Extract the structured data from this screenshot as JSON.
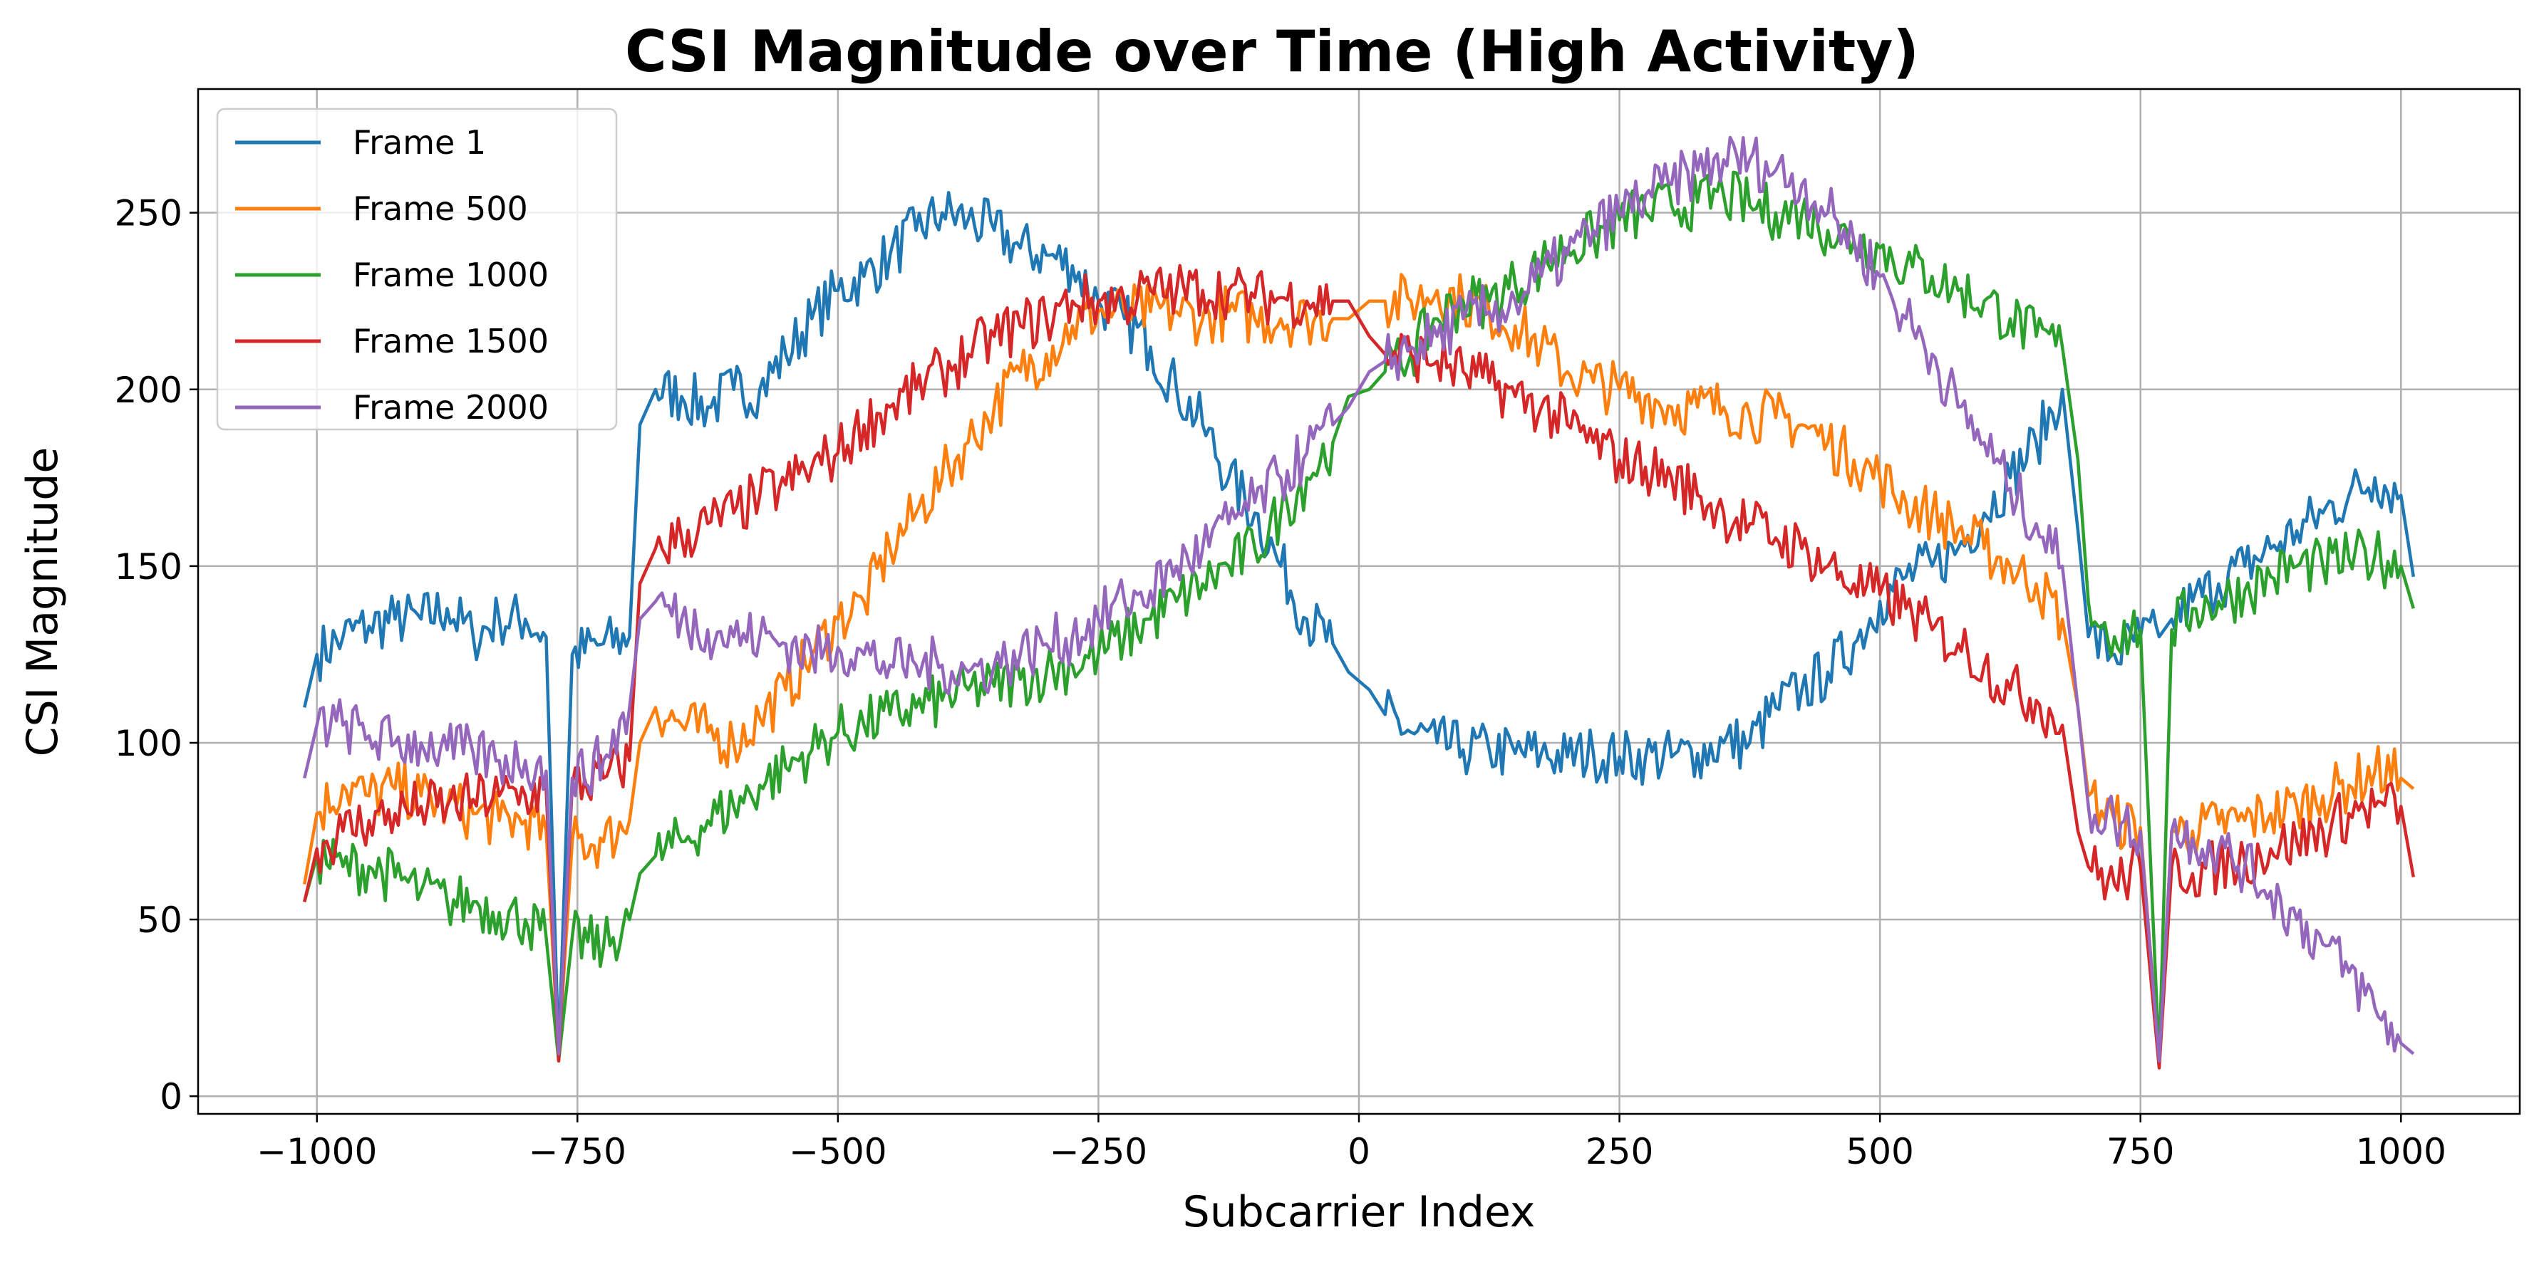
{
  "chart_data": {
    "type": "line",
    "title": "CSI Magnitude over Time (High Activity)",
    "xlabel": "Subcarrier Index",
    "ylabel": "CSI Magnitude",
    "xlim": [
      -1114,
      1114
    ],
    "ylim": [
      -5,
      285
    ],
    "xticks": [
      -1000,
      -750,
      -500,
      -250,
      0,
      250,
      500,
      750,
      1000
    ],
    "xtick_labels": [
      "−1000",
      "−750",
      "−500",
      "−250",
      "0",
      "250",
      "500",
      "750",
      "1000"
    ],
    "yticks": [
      0,
      50,
      100,
      150,
      200,
      250
    ],
    "ytick_labels": [
      "0",
      "50",
      "100",
      "150",
      "200",
      "250"
    ],
    "grid": true,
    "legend_position": "top-left",
    "x": [
      -1012,
      -1000,
      -975,
      -950,
      -925,
      -900,
      -875,
      -850,
      -825,
      -800,
      -780,
      -768,
      -755,
      -725,
      -700,
      -690,
      -675,
      -650,
      -625,
      -600,
      -575,
      -550,
      -525,
      -500,
      -475,
      -450,
      -425,
      -400,
      -375,
      -350,
      -325,
      -300,
      -275,
      -250,
      -225,
      -200,
      -175,
      -150,
      -125,
      -100,
      -75,
      -50,
      -25,
      -10,
      10,
      25,
      50,
      75,
      100,
      125,
      150,
      175,
      200,
      225,
      250,
      275,
      300,
      325,
      350,
      375,
      400,
      425,
      450,
      475,
      500,
      525,
      550,
      575,
      600,
      625,
      650,
      675,
      690,
      700,
      725,
      750,
      768,
      780,
      800,
      825,
      850,
      875,
      900,
      925,
      950,
      975,
      1000,
      1012
    ],
    "series": [
      {
        "name": "Frame 1",
        "color": "#1f77b4",
        "values": [
          110,
          125,
          130,
          133,
          135,
          135,
          138,
          130,
          135,
          135,
          130,
          12,
          125,
          128,
          130,
          190,
          200,
          198,
          195,
          200,
          200,
          210,
          220,
          228,
          232,
          238,
          245,
          250,
          248,
          245,
          240,
          238,
          235,
          225,
          220,
          212,
          200,
          190,
          175,
          165,
          150,
          135,
          128,
          120,
          115,
          108,
          103,
          100,
          98,
          98,
          97,
          97,
          96,
          97,
          96,
          96,
          96,
          97,
          100,
          100,
          110,
          115,
          120,
          128,
          140,
          147,
          150,
          155,
          165,
          175,
          185,
          200,
          160,
          130,
          125,
          130,
          130,
          135,
          140,
          145,
          150,
          155,
          160,
          165,
          170,
          175,
          170,
          147
        ]
      },
      {
        "name": "Frame 500",
        "color": "#ff7f0e",
        "values": [
          60,
          80,
          88,
          85,
          87,
          85,
          82,
          80,
          78,
          78,
          75,
          12,
          72,
          72,
          78,
          100,
          110,
          105,
          103,
          100,
          107,
          115,
          125,
          135,
          140,
          155,
          165,
          175,
          185,
          195,
          205,
          210,
          218,
          222,
          222,
          222,
          222,
          220,
          222,
          220,
          220,
          220,
          220,
          220,
          225,
          225,
          225,
          228,
          225,
          222,
          218,
          212,
          205,
          202,
          200,
          198,
          195,
          195,
          195,
          193,
          192,
          190,
          185,
          180,
          175,
          168,
          165,
          160,
          155,
          150,
          145,
          135,
          110,
          85,
          78,
          76,
          10,
          75,
          75,
          77,
          78,
          80,
          82,
          85,
          88,
          92,
          90,
          87
        ]
      },
      {
        "name": "Frame 1000",
        "color": "#2ca02c",
        "values": [
          55,
          68,
          65,
          65,
          62,
          58,
          55,
          55,
          52,
          50,
          45,
          10,
          45,
          42,
          50,
          63,
          68,
          72,
          78,
          82,
          88,
          93,
          98,
          103,
          105,
          108,
          110,
          112,
          115,
          116,
          118,
          120,
          122,
          125,
          130,
          135,
          140,
          145,
          150,
          155,
          165,
          175,
          185,
          198,
          200,
          205,
          210,
          220,
          225,
          225,
          230,
          235,
          240,
          243,
          248,
          250,
          252,
          253,
          255,
          252,
          250,
          250,
          245,
          242,
          240,
          235,
          232,
          228,
          225,
          220,
          215,
          212,
          180,
          140,
          130,
          132,
          10,
          132,
          138,
          140,
          143,
          147,
          150,
          150,
          152,
          153,
          150,
          138
        ]
      },
      {
        "name": "Frame 1500",
        "color": "#d62728",
        "values": [
          55,
          70,
          75,
          78,
          80,
          82,
          82,
          84,
          85,
          85,
          87,
          10,
          88,
          90,
          95,
          145,
          155,
          158,
          162,
          165,
          170,
          173,
          178,
          182,
          190,
          195,
          200,
          205,
          210,
          215,
          218,
          220,
          225,
          225,
          225,
          228,
          228,
          228,
          228,
          226,
          226,
          225,
          225,
          225,
          215,
          210,
          210,
          208,
          205,
          202,
          198,
          195,
          190,
          185,
          180,
          178,
          175,
          170,
          165,
          162,
          158,
          155,
          150,
          145,
          142,
          138,
          132,
          128,
          122,
          115,
          112,
          105,
          75,
          65,
          60,
          65,
          8,
          65,
          63,
          65,
          67,
          70,
          72,
          75,
          80,
          82,
          82,
          62
        ]
      },
      {
        "name": "Frame 2000",
        "color": "#9467bd",
        "values": [
          90,
          105,
          105,
          102,
          100,
          100,
          98,
          97,
          95,
          95,
          92,
          12,
          90,
          95,
          110,
          135,
          140,
          135,
          132,
          130,
          130,
          128,
          125,
          127,
          125,
          122,
          122,
          122,
          120,
          122,
          125,
          128,
          130,
          135,
          140,
          143,
          150,
          155,
          162,
          168,
          175,
          182,
          190,
          195,
          205,
          208,
          212,
          215,
          220,
          222,
          225,
          232,
          238,
          245,
          250,
          255,
          258,
          262,
          265,
          265,
          262,
          258,
          250,
          242,
          232,
          220,
          210,
          195,
          185,
          172,
          162,
          150,
          110,
          82,
          78,
          75,
          10,
          75,
          73,
          70,
          65,
          58,
          50,
          43,
          35,
          25,
          15,
          12
        ]
      }
    ]
  }
}
